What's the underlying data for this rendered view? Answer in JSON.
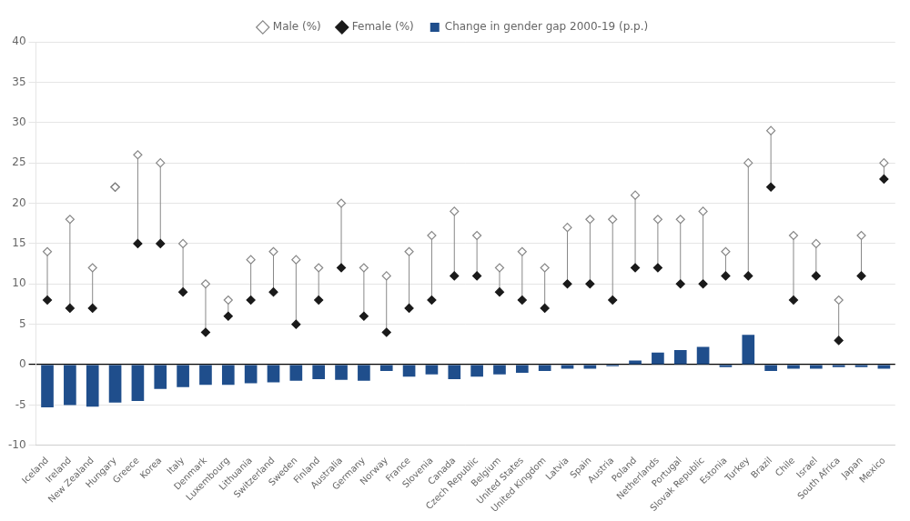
{
  "chart_data": {
    "type": "bar",
    "categories": [
      "Iceland",
      "Ireland",
      "New Zealand",
      "Hungary",
      "Greece",
      "Korea",
      "Italy",
      "Denmark",
      "Luxembourg",
      "Lithuania",
      "Switzerland",
      "Sweden",
      "Finland",
      "Australia",
      "Germany",
      "Norway",
      "France",
      "Slovenia",
      "Canada",
      "Czech Republic",
      "Belgium",
      "United States",
      "United Kingdom",
      "Latvia",
      "Spain",
      "Austria",
      "Poland",
      "Netherlands",
      "Portugal",
      "Slovak Republic",
      "Estonia",
      "Turkey",
      "Brazil",
      "Chile",
      "Israel",
      "South Africa",
      "Japan",
      "Mexico"
    ],
    "series": [
      {
        "name": "Change in gender gap 2000-19 (p.p.)",
        "type": "bar",
        "color": "#1f4e8c",
        "values": [
          -5.3,
          -5.0,
          -5.2,
          -4.7,
          -4.5,
          -3.0,
          -2.8,
          -2.5,
          -2.5,
          -2.3,
          -2.2,
          -2.0,
          -1.8,
          -1.9,
          -2.0,
          -0.8,
          -1.5,
          -1.2,
          -1.8,
          -1.5,
          -1.2,
          -1.0,
          -0.8,
          -0.5,
          -0.5,
          -0.2,
          0.5,
          1.5,
          1.8,
          2.2,
          -0.3,
          3.7,
          -0.8,
          -0.5,
          -0.5,
          -0.3,
          -0.3,
          -0.5
        ]
      },
      {
        "name": "Male (%)",
        "type": "scatter",
        "marker": "diamond_open",
        "color": "#888888",
        "values": [
          14,
          18,
          12,
          22,
          26,
          25,
          15,
          10,
          8,
          13,
          14,
          13,
          12,
          20,
          12,
          11,
          14,
          16,
          19,
          16,
          12,
          14,
          12,
          17,
          18,
          18,
          21,
          18,
          18,
          19,
          14,
          25,
          29,
          16,
          15,
          8,
          16,
          25
        ]
      },
      {
        "name": "Female (%)",
        "type": "scatter",
        "marker": "diamond",
        "color": "#1a1a1a",
        "values": [
          8,
          7,
          7,
          22,
          15,
          15,
          9,
          4,
          6,
          8,
          9,
          5,
          8,
          12,
          6,
          4,
          7,
          8,
          11,
          11,
          9,
          8,
          7,
          10,
          10,
          8,
          12,
          12,
          10,
          10,
          11,
          11,
          22,
          8,
          11,
          3,
          11,
          23
        ]
      }
    ],
    "ylim": [
      -10,
      40
    ],
    "yticks": [
      -10,
      -5,
      0,
      5,
      10,
      15,
      20,
      25,
      30,
      35,
      40
    ],
    "grid": true,
    "legend": "top"
  }
}
